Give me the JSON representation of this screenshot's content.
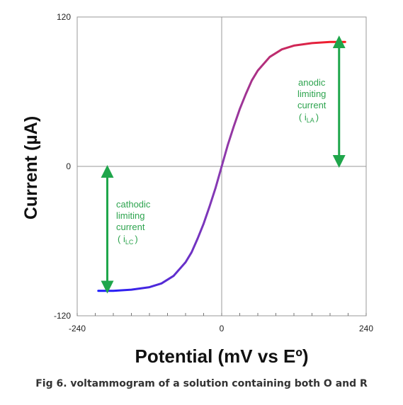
{
  "chart_data": {
    "type": "line",
    "xlabel": "Potential (mV vs Eº)",
    "ylabel": "Current (µA)",
    "xlim": [
      -240,
      240
    ],
    "ylim": [
      -120,
      120
    ],
    "x_tick_labels": [
      "-240",
      "0",
      "240"
    ],
    "y_tick_labels": [
      "120",
      "0",
      "-120"
    ],
    "grid": false,
    "series": [
      {
        "x": [
          -205,
          -180,
          -150,
          -120,
          -100,
          -80,
          -60,
          -50,
          -40,
          -30,
          -20,
          -10,
          0,
          10,
          20,
          30,
          40,
          50,
          60,
          80,
          100,
          120,
          150,
          180,
          205
        ],
        "y": [
          -100,
          -100,
          -99,
          -97,
          -94,
          -88,
          -77,
          -69,
          -58,
          -46,
          -32,
          -17,
          0,
          17,
          32,
          46,
          58,
          69,
          77,
          88,
          94,
          97,
          99,
          100,
          100
        ],
        "color_start": "#1a1aff",
        "color_end": "#ff1a1a"
      }
    ],
    "annotations": [
      {
        "lines": [
          "anodic",
          "limiting",
          "current"
        ],
        "symbol": "( i",
        "subscript": "LA",
        "close": ")",
        "arrow_x": 195,
        "arrow_from_y": 100,
        "arrow_to_y": 4
      },
      {
        "lines": [
          "cathodic",
          "limiting",
          "current"
        ],
        "symbol": "( i",
        "subscript": "LC",
        "close": ")",
        "arrow_x": -190,
        "arrow_from_y": -4,
        "arrow_to_y": -97
      }
    ],
    "arrow_color": "#1fa64b"
  },
  "caption": "Fig 6. voltammogram of a solution containing both O and R"
}
